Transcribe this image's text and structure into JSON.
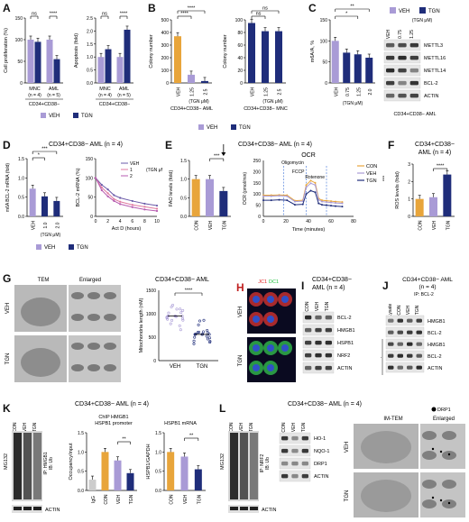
{
  "colors": {
    "veh": "#9b8ac4",
    "tgn": "#2e3a8f",
    "con": "#f0a33c",
    "orange": "#e8a53b",
    "purple": "#a99bd6",
    "navy": "#1f2d7a",
    "red": "#e02020",
    "green": "#22c040"
  },
  "legend": {
    "veh": "VEH",
    "tgn": "TGN",
    "con": "CON"
  },
  "A": {
    "label": "A",
    "left": {
      "ylabel": "Cell proliferation (%)",
      "yticks": [
        "0",
        "50",
        "100",
        "150"
      ],
      "cats": [
        "MNC",
        "AML"
      ],
      "ns": [
        "(n = 4)",
        "(n = 5)"
      ],
      "sig": [
        "ns",
        "****"
      ],
      "group": "CD34+CD38−",
      "chart_data": {
        "type": "bar",
        "categories": [
          "MNC",
          "AML"
        ],
        "series": [
          {
            "name": "VEH",
            "values": [
              100,
              100
            ]
          },
          {
            "name": "TGN",
            "values": [
              95,
              55
            ]
          }
        ],
        "ylim": [
          0,
          150
        ]
      }
    },
    "right": {
      "ylabel": "Apoptosis (fold)",
      "yticks": [
        "0.0",
        "0.5",
        "1.0",
        "1.5",
        "2.0",
        "2.5"
      ],
      "cats": [
        "MNC",
        "AML"
      ],
      "ns": [
        "(n = 4)",
        "(n = 5)"
      ],
      "sig": [
        "ns",
        "****"
      ],
      "group": "CD34+CD38−",
      "chart_data": {
        "type": "bar",
        "categories": [
          "MNC",
          "AML"
        ],
        "series": [
          {
            "name": "VEH",
            "values": [
              1.0,
              1.0
            ]
          },
          {
            "name": "TGN",
            "values": [
              1.3,
              2.05
            ]
          }
        ],
        "ylim": [
          0,
          2.5
        ]
      }
    }
  },
  "B": {
    "label": "B",
    "left": {
      "ylabel": "Colony number",
      "yticks": [
        "0",
        "100",
        "200",
        "300",
        "400",
        "500"
      ],
      "cats": [
        "VEH",
        "1.25",
        "2.5"
      ],
      "unit": "(TGN μM)",
      "group": "CD34+CD38− AML",
      "sig": [
        "****",
        "****"
      ],
      "chart_data": {
        "type": "bar",
        "categories": [
          "VEH",
          "1.25",
          "2.5"
        ],
        "values": [
          370,
          65,
          15
        ],
        "ylim": [
          0,
          500
        ]
      }
    },
    "right": {
      "ylabel": "Colony number",
      "yticks": [
        "0",
        "20",
        "40",
        "60",
        "80",
        "100"
      ],
      "cats": [
        "VEH",
        "1.25",
        "2.5"
      ],
      "unit": "(TGN μM)",
      "group": "CD34+CD38− MNC",
      "sig": [
        "ns",
        "ns"
      ],
      "chart_data": {
        "type": "bar",
        "categories": [
          "VEH",
          "1.25",
          "2.5"
        ],
        "values": [
          95,
          82,
          82
        ],
        "ylim": [
          0,
          100
        ]
      }
    }
  },
  "C": {
    "label": "C",
    "ylabel": "m6A/A, %",
    "yticks": [
      "0",
      "50",
      "100",
      "150"
    ],
    "cats": [
      "VEH",
      "0.75",
      "1.25",
      "2.0"
    ],
    "unit": "(TGN μM)",
    "sig": [
      "**",
      "*"
    ],
    "chart_data": {
      "type": "bar",
      "categories": [
        "VEH",
        "0.75",
        "1.25",
        "2.0"
      ],
      "values": [
        100,
        72,
        68,
        60
      ],
      "ylim": [
        0,
        150
      ]
    },
    "blot": {
      "header": "(TGN μM)",
      "lanes": [
        "VEH",
        "0.75",
        "1.25"
      ],
      "rows": [
        "METTL3",
        "METTL16",
        "METTL14",
        "BCL-2",
        "ACTIN"
      ]
    },
    "group": "CD34+CD38− AML"
  },
  "D": {
    "label": "D",
    "title": "CD34+CD38− AML (n = 4)",
    "left": {
      "ylabel": "m6A BCL-2 mRNA (fold)",
      "yticks": [
        "0.0",
        "0.5",
        "1.0",
        "1.5"
      ],
      "cats": [
        "VEH",
        "1.0",
        "2.0"
      ],
      "unit": "(TGN μM)",
      "sig": [
        "***",
        "*"
      ],
      "chart_data": {
        "type": "bar",
        "categories": [
          "VEH",
          "1.0",
          "2.0"
        ],
        "values": [
          0.72,
          0.52,
          0.4
        ],
        "ylim": [
          0,
          1.5
        ]
      }
    },
    "right": {
      "ylabel": "BCL-2 mRNA (%)",
      "xlabel": "Act D (hours)",
      "xticks": [
        "0",
        "2",
        "4",
        "6",
        "8",
        "10"
      ],
      "yticks": [
        "0",
        "50",
        "100",
        "150"
      ],
      "legend": [
        "VEH",
        "1",
        "2"
      ],
      "unit": "(TGN μM)",
      "chart_data": {
        "type": "line",
        "x": [
          0,
          1,
          2,
          3,
          4,
          6,
          8,
          10
        ],
        "series": [
          {
            "name": "VEH",
            "values": [
              100,
              82,
              70,
              55,
              48,
              40,
              33,
              28
            ]
          },
          {
            "name": "1",
            "values": [
              100,
              75,
              60,
              45,
              38,
              30,
              25,
              20
            ]
          },
          {
            "name": "2",
            "values": [
              100,
              68,
              52,
              40,
              32,
              24,
              18,
              14
            ]
          }
        ],
        "ylim": [
          0,
          150
        ]
      }
    }
  },
  "E": {
    "label": "E",
    "title": "CD34+CD38− AML (n = 4)",
    "left": {
      "ylabel": "FAO levels (fold)",
      "yticks": [
        "0.0",
        "0.5",
        "1.0",
        "1.5"
      ],
      "cats": [
        "CON",
        "VEH",
        "TGN"
      ],
      "sig": [
        "***"
      ],
      "chart_data": {
        "type": "bar",
        "categories": [
          "CON",
          "VEH",
          "TGN"
        ],
        "values": [
          1.0,
          1.0,
          0.68
        ],
        "ylim": [
          0,
          1.5
        ]
      }
    },
    "right": {
      "title": "OCR",
      "ylabel": "OCR (pmol/min)",
      "xlabel": "Time (minutes)",
      "xticks": [
        "0",
        "20",
        "40",
        "60",
        "80"
      ],
      "yticks": [
        "0",
        "50",
        "100",
        "150",
        "200",
        "250"
      ],
      "injections": [
        "Oligomycin",
        "FCCP",
        "Rotenone"
      ],
      "legend": [
        "CON",
        "VEH",
        "TGN"
      ],
      "sig": "***",
      "chart_data": {
        "type": "line",
        "x": [
          0,
          7,
          14,
          21,
          28,
          35,
          38,
          42,
          46,
          49,
          52,
          56,
          60,
          64,
          70
        ],
        "series": [
          {
            "name": "CON",
            "values": [
              95,
              95,
              96,
              95,
              70,
              72,
              140,
              160,
              150,
              80,
              72,
              70,
              68,
              66,
              64
            ]
          },
          {
            "name": "VEH",
            "values": [
              90,
              90,
              92,
              90,
              66,
              68,
              130,
              148,
              140,
              74,
              66,
              64,
              62,
              60,
              58
            ]
          },
          {
            "name": "TGN",
            "values": [
              72,
              72,
              74,
              72,
              52,
              54,
              100,
              115,
              108,
              58,
              52,
              50,
              48,
              46,
              44
            ]
          }
        ],
        "ylim": [
          0,
          250
        ]
      }
    }
  },
  "F": {
    "label": "F",
    "title": "CD34+CD38− AML (n = 4)",
    "ylabel": "ROS levels (fold)",
    "yticks": [
      "0",
      "1",
      "2",
      "3"
    ],
    "cats": [
      "CON",
      "VEH",
      "TGN"
    ],
    "sig": [
      "****"
    ],
    "chart_data": {
      "type": "bar",
      "categories": [
        "CON",
        "VEH",
        "TGN"
      ],
      "values": [
        1.0,
        1.1,
        2.4
      ],
      "ylim": [
        0,
        3
      ]
    }
  },
  "G": {
    "label": "G",
    "tem": "TEM",
    "enlarged": "Enlarged",
    "rows": [
      "VEH",
      "TGN"
    ],
    "title": "CD34+CD38− AML",
    "ylabel": "Mitochondria length (nM)",
    "yticks": [
      "0",
      "500",
      "1000",
      "1500"
    ],
    "cats": [
      "VEH",
      "TGN"
    ],
    "sig": [
      "****"
    ],
    "chart_data": {
      "type": "scatter",
      "categories": [
        "VEH",
        "TGN"
      ],
      "values": [
        950,
        560
      ],
      "ylim": [
        0,
        1500
      ]
    }
  },
  "H": {
    "label": "H",
    "stain_a": "JC1",
    "stain_b": "DC1",
    "rows": [
      "VEH",
      "TGN"
    ]
  },
  "I": {
    "label": "I",
    "title": "CD34+CD38− AML (n = 4)",
    "lanes": [
      "CON",
      "VEH",
      "TGN"
    ],
    "rows": [
      "BCL-2",
      "HMGB1",
      "HSPB1",
      "NRF2",
      "ACTIN"
    ]
  },
  "J": {
    "label": "J",
    "title": "CD34+CD38− AML (n = 4)",
    "ip": "IP: BCL-2",
    "lanes": [
      "Lysate",
      "CON",
      "VEH",
      "TGN"
    ],
    "rows": [
      "HMGB1",
      "BCL-2",
      "HMGB1",
      "BCL-2",
      "ACTIN"
    ],
    "input": "Input"
  },
  "K": {
    "label": "K",
    "title": "CD34+CD38− AML (n = 4)",
    "mg132": "MG132",
    "lanes": [
      "CON",
      "VEH",
      "TGN"
    ],
    "ip": "IP: HMGB1",
    "ib": "IB: Ub",
    "actin": "ACTIN",
    "chip": {
      "title1": "ChIP HMGB1",
      "title2": "HSPB1 promoter",
      "ylabel": "Occupancy/input",
      "yticks": [
        "0.0",
        "0.5",
        "1.0",
        "1.5"
      ],
      "cats": [
        "IgG",
        "CON",
        "VEH",
        "TGN"
      ],
      "sig": [
        "**"
      ],
      "chart_data": {
        "type": "bar",
        "categories": [
          "IgG",
          "CON",
          "VEH",
          "TGN"
        ],
        "values": [
          0.28,
          1.0,
          0.78,
          0.45
        ],
        "ylim": [
          0,
          1.5
        ]
      }
    },
    "mrna": {
      "title": "HSPB1 mRNA",
      "ylabel": "HSPB1/GAPDH",
      "yticks": [
        "0.0",
        "0.5",
        "1.0",
        "1.5"
      ],
      "cats": [
        "CON",
        "VEH",
        "TGN"
      ],
      "sig": [
        "**"
      ],
      "chart_data": {
        "type": "bar",
        "categories": [
          "CON",
          "VEH",
          "TGN"
        ],
        "values": [
          1.0,
          0.88,
          0.55
        ],
        "ylim": [
          0,
          1.5
        ]
      }
    }
  },
  "L": {
    "label": "L",
    "title": "CD34+CD38− AML (n = 4)",
    "mg132": "MG132",
    "lanes": [
      "CON",
      "VEH",
      "TGN"
    ],
    "ip": "IP: NRF2",
    "ib": "IB: Ub",
    "actin": "ACTIN",
    "blot": {
      "lanes": [
        "CON",
        "VEH",
        "TGN"
      ],
      "rows": [
        "HO-1",
        "NQO-1",
        "DRP1",
        "ACTIN"
      ]
    },
    "imtem": "IM-TEM",
    "drp1": "DRP1",
    "enlarged": "Enlarged",
    "rows": [
      "VEH",
      "TGN"
    ]
  }
}
